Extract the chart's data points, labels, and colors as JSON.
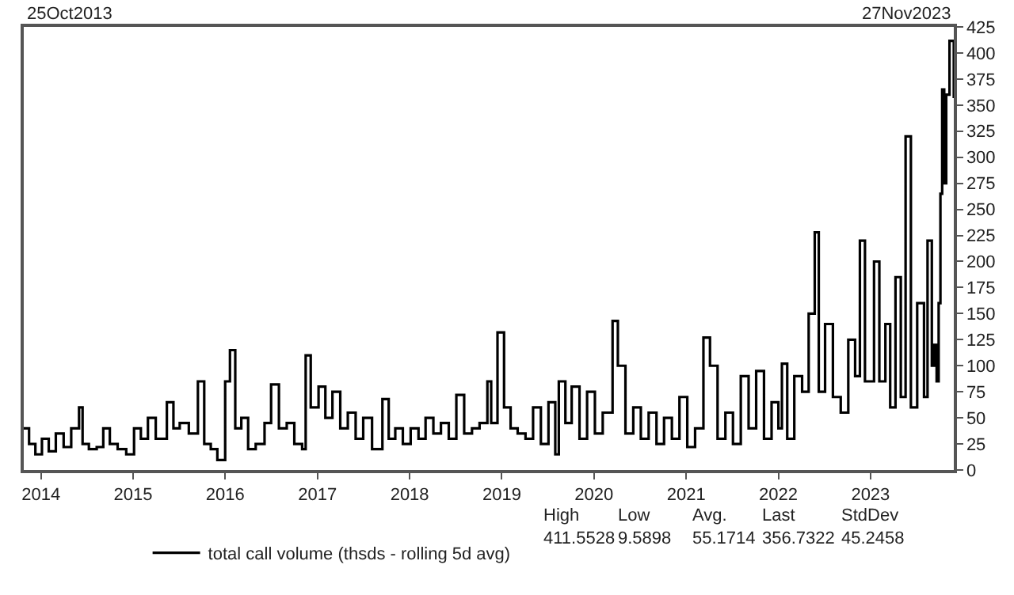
{
  "chart_data": {
    "type": "step",
    "x": [
      "2013-10-25",
      "2013-11-15",
      "2013-12-10",
      "2014-01-05",
      "2014-02-01",
      "2014-03-01",
      "2014-04-01",
      "2014-05-01",
      "2014-06-01",
      "2014-06-15",
      "2014-07-10",
      "2014-08-10",
      "2014-09-05",
      "2014-10-01",
      "2014-11-01",
      "2014-12-05",
      "2015-01-05",
      "2015-02-01",
      "2015-03-01",
      "2015-04-01",
      "2015-05-15",
      "2015-06-10",
      "2015-07-05",
      "2015-08-10",
      "2015-09-15",
      "2015-10-10",
      "2015-11-05",
      "2015-12-01",
      "2016-01-01",
      "2016-01-20",
      "2016-02-10",
      "2016-03-05",
      "2016-04-01",
      "2016-05-01",
      "2016-06-05",
      "2016-07-01",
      "2016-08-01",
      "2016-09-01",
      "2016-10-01",
      "2016-11-01",
      "2016-11-15",
      "2016-12-05",
      "2017-01-05",
      "2017-02-01",
      "2017-03-01",
      "2017-04-01",
      "2017-05-01",
      "2017-06-01",
      "2017-07-01",
      "2017-08-05",
      "2017-09-15",
      "2017-10-10",
      "2017-11-05",
      "2017-12-05",
      "2018-01-05",
      "2018-02-05",
      "2018-03-05",
      "2018-04-05",
      "2018-05-05",
      "2018-06-05",
      "2018-07-05",
      "2018-08-05",
      "2018-09-05",
      "2018-10-05",
      "2018-11-05",
      "2018-11-20",
      "2018-12-15",
      "2019-01-10",
      "2019-02-05",
      "2019-03-05",
      "2019-04-05",
      "2019-05-05",
      "2019-06-05",
      "2019-07-05",
      "2019-08-01",
      "2019-08-15",
      "2019-09-10",
      "2019-10-05",
      "2019-11-05",
      "2019-12-05",
      "2020-01-05",
      "2020-02-05",
      "2020-03-15",
      "2020-04-05",
      "2020-05-05",
      "2020-06-05",
      "2020-07-05",
      "2020-08-05",
      "2020-09-05",
      "2020-10-05",
      "2020-11-05",
      "2020-12-05",
      "2021-01-05",
      "2021-02-05",
      "2021-03-10",
      "2021-04-05",
      "2021-05-05",
      "2021-06-05",
      "2021-07-05",
      "2021-08-05",
      "2021-09-05",
      "2021-10-05",
      "2021-11-05",
      "2021-12-05",
      "2022-01-01",
      "2022-01-15",
      "2022-02-05",
      "2022-03-05",
      "2022-04-05",
      "2022-05-01",
      "2022-05-25",
      "2022-06-10",
      "2022-07-05",
      "2022-08-05",
      "2022-09-05",
      "2022-10-05",
      "2022-11-01",
      "2022-11-20",
      "2022-12-10",
      "2023-01-15",
      "2023-02-05",
      "2023-03-01",
      "2023-03-20",
      "2023-04-10",
      "2023-05-01",
      "2023-05-20",
      "2023-06-10",
      "2023-07-05",
      "2023-08-01",
      "2023-08-15",
      "2023-09-01",
      "2023-09-10",
      "2023-09-20",
      "2023-09-28",
      "2023-10-05",
      "2023-10-12",
      "2023-10-20",
      "2023-10-28",
      "2023-11-10",
      "2023-11-27"
    ],
    "series": [
      {
        "name": "total call volume (thsds - rolling 5d avg)",
        "color": "#000000",
        "values": [
          40,
          25,
          15,
          30,
          18,
          35,
          22,
          40,
          60,
          25,
          20,
          22,
          40,
          25,
          20,
          15,
          40,
          30,
          50,
          30,
          65,
          40,
          45,
          35,
          85,
          25,
          20,
          9.5898,
          85,
          115,
          40,
          50,
          20,
          25,
          45,
          82,
          40,
          45,
          25,
          20,
          110,
          60,
          80,
          50,
          75,
          40,
          55,
          30,
          50,
          20,
          68,
          30,
          40,
          25,
          40,
          30,
          50,
          35,
          45,
          30,
          72,
          35,
          40,
          45,
          85,
          45,
          132,
          60,
          40,
          35,
          30,
          60,
          25,
          65,
          15,
          85,
          45,
          80,
          30,
          75,
          35,
          55,
          143,
          100,
          35,
          60,
          30,
          55,
          25,
          50,
          30,
          70,
          22,
          40,
          127,
          100,
          30,
          55,
          25,
          90,
          40,
          95,
          30,
          65,
          40,
          102,
          30,
          90,
          75,
          150,
          228,
          75,
          140,
          70,
          55,
          125,
          90,
          220,
          85,
          200,
          85,
          140,
          60,
          185,
          70,
          320,
          60,
          160,
          70,
          220,
          100,
          120,
          85,
          160,
          265,
          365,
          275,
          360,
          411.5528,
          356.7322
        ]
      }
    ],
    "xlim": [
      "2013-10-25",
      "2023-11-27"
    ],
    "xticks": [
      {
        "value": "2014-01-01",
        "label": "2014"
      },
      {
        "value": "2015-01-01",
        "label": "2015"
      },
      {
        "value": "2016-01-01",
        "label": "2016"
      },
      {
        "value": "2017-01-01",
        "label": "2017"
      },
      {
        "value": "2018-01-01",
        "label": "2018"
      },
      {
        "value": "2019-01-01",
        "label": "2019"
      },
      {
        "value": "2020-01-01",
        "label": "2020"
      },
      {
        "value": "2021-01-01",
        "label": "2021"
      },
      {
        "value": "2022-01-01",
        "label": "2022"
      },
      {
        "value": "2023-01-01",
        "label": "2023"
      }
    ],
    "ylim": [
      0,
      425
    ],
    "yticks": [
      0,
      25,
      50,
      75,
      100,
      125,
      150,
      175,
      200,
      225,
      250,
      275,
      300,
      325,
      350,
      375,
      400,
      425
    ],
    "legend": "bottom",
    "annotations": [
      "25Oct2013",
      "27Nov2023",
      "High\n411.5528",
      "Low\n9.5898",
      "Avg.\n55.1714",
      "Last\n356.7322",
      "StdDev\n45.2458"
    ]
  }
}
